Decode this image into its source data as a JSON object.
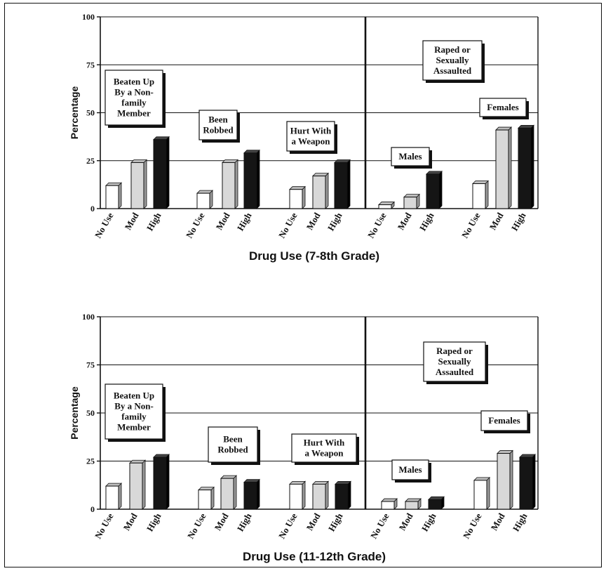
{
  "chart_data": [
    {
      "type": "bar",
      "ylabel": "Percentage",
      "xlabel": "Drug Use  (7-8th Grade)",
      "ylim": [
        0,
        100
      ],
      "yticks": [
        "0",
        "25",
        "50",
        "75",
        "100"
      ],
      "series_colors": {
        "No Use": "#ffffff",
        "Mod": "#d8d8d8",
        "High": "#151515"
      },
      "groups": [
        {
          "label": "Beaten Up By a Non-family Member",
          "label_lines": [
            "Beaten Up",
            "By a Non-",
            "family",
            "Member"
          ],
          "categories": [
            "No Use",
            "Mod",
            "High"
          ],
          "values": [
            12,
            24,
            36
          ]
        },
        {
          "label": "Been Robbed",
          "label_lines": [
            "Been",
            "Robbed"
          ],
          "categories": [
            "No Use",
            "Mod",
            "High"
          ],
          "values": [
            8,
            24,
            29
          ]
        },
        {
          "label": "Hurt With a Weapon",
          "label_lines": [
            "Hurt With",
            "a Weapon"
          ],
          "categories": [
            "No Use",
            "Mod",
            "High"
          ],
          "values": [
            10,
            17,
            24
          ]
        },
        {
          "label": "Males",
          "label_lines": [
            "Males"
          ],
          "categories": [
            "No Use",
            "Mod",
            "High"
          ],
          "values": [
            2,
            6,
            18
          ]
        },
        {
          "label": "Females",
          "label_lines": [
            "Females"
          ],
          "categories": [
            "No Use",
            "Mod",
            "High"
          ],
          "values": [
            13,
            41,
            42
          ]
        }
      ],
      "section_label_lines": [
        "Raped or",
        "Sexually",
        "Assaulted"
      ]
    },
    {
      "type": "bar",
      "ylabel": "Percentage",
      "xlabel": "Drug Use  (11-12th Grade)",
      "ylim": [
        0,
        100
      ],
      "yticks": [
        "0",
        "25",
        "50",
        "75",
        "100"
      ],
      "series_colors": {
        "No Use": "#ffffff",
        "Mod": "#d8d8d8",
        "High": "#151515"
      },
      "groups": [
        {
          "label": "Beaten Up By a Non-family Member",
          "label_lines": [
            "Beaten Up",
            "By a Non-",
            "family",
            "Member"
          ],
          "categories": [
            "No Use",
            "Mod",
            "High"
          ],
          "values": [
            12,
            24,
            27
          ]
        },
        {
          "label": "Been Robbed",
          "label_lines": [
            "Been",
            "Robbed"
          ],
          "categories": [
            "No Use",
            "Mod",
            "High"
          ],
          "values": [
            10,
            16,
            14
          ]
        },
        {
          "label": "Hurt With a Weapon",
          "label_lines": [
            "Hurt With",
            "a Weapon"
          ],
          "categories": [
            "No Use",
            "Mod",
            "High"
          ],
          "values": [
            13,
            13,
            13
          ]
        },
        {
          "label": "Males",
          "label_lines": [
            "Males"
          ],
          "categories": [
            "No Use",
            "Mod",
            "High"
          ],
          "values": [
            4,
            4,
            5
          ]
        },
        {
          "label": "Females",
          "label_lines": [
            "Females"
          ],
          "categories": [
            "No Use",
            "Mod",
            "High"
          ],
          "values": [
            15,
            29,
            27
          ]
        }
      ],
      "section_label_lines": [
        "Raped or",
        "Sexually",
        "Assaulted"
      ]
    }
  ]
}
